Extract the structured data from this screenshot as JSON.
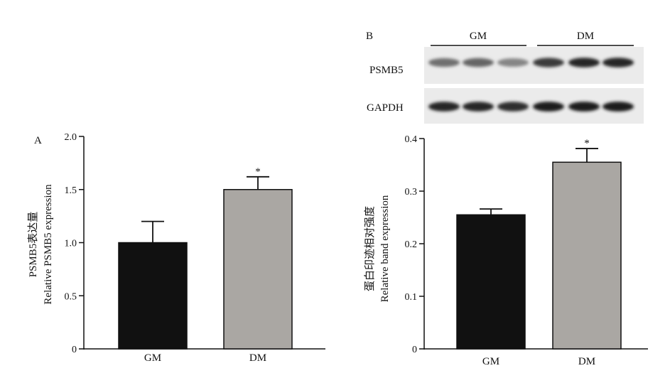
{
  "chart_data": [
    {
      "type": "bar",
      "panel_label": "A",
      "categories": [
        "GM",
        "DM"
      ],
      "values": [
        1.0,
        1.5
      ],
      "error": [
        0.2,
        0.12
      ],
      "significance": [
        "",
        "*"
      ],
      "bar_colors": [
        "#111111",
        "#aaa7a3"
      ],
      "ylabel_lines": [
        "PSMB5表达量",
        "Relative PSMB5 expression"
      ],
      "xlabel": "",
      "ylim": [
        0,
        2.0
      ],
      "yticks": [
        "0",
        "0.5",
        "1.0",
        "1.5",
        "2.0"
      ],
      "ytick_values": [
        0,
        0.5,
        1.0,
        1.5,
        2.0
      ],
      "grid": false,
      "legend": "none"
    },
    {
      "type": "bar",
      "panel_label": "B",
      "categories": [
        "GM",
        "DM"
      ],
      "values": [
        0.255,
        0.355
      ],
      "error": [
        0.011,
        0.026
      ],
      "significance": [
        "",
        "*"
      ],
      "bar_colors": [
        "#111111",
        "#aaa7a3"
      ],
      "ylabel_lines": [
        "蛋白印迹相对强度",
        "Relative band expression"
      ],
      "xlabel": "",
      "ylim": [
        0,
        0.4
      ],
      "yticks": [
        "0",
        "0.1",
        "0.2",
        "0.3",
        "0.4"
      ],
      "ytick_values": [
        0,
        0.1,
        0.2,
        0.3,
        0.4
      ],
      "grid": false,
      "legend": "none"
    }
  ],
  "blot": {
    "groups": [
      "GM",
      "DM"
    ],
    "rows": [
      {
        "label": "PSMB5",
        "intensities": [
          0.55,
          0.6,
          0.45,
          0.8,
          0.9,
          0.9
        ]
      },
      {
        "label": "GAPDH",
        "intensities": [
          0.9,
          0.9,
          0.85,
          0.95,
          0.95,
          0.95
        ]
      }
    ]
  }
}
